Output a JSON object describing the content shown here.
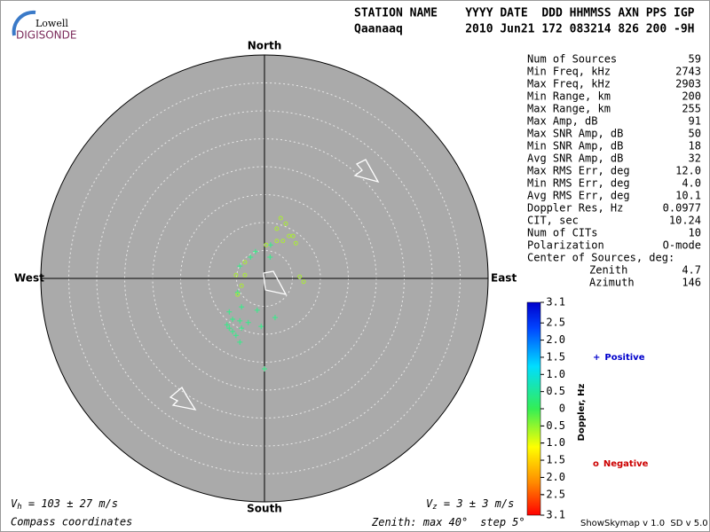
{
  "logo": {
    "top": "Lowell",
    "bottom": "DIGISONDE"
  },
  "header": {
    "line1": "STATION NAME    YYYY DATE  DDD HHMMSS AXN PPS IGP",
    "line2": "Qaanaaq         2010 Jun21 172 083214 826 200 -9H"
  },
  "compass": {
    "north": "North",
    "south": "South",
    "east": "East",
    "west": "West"
  },
  "zenith": {
    "prefix": "Zenith: max",
    "max": 40,
    "unit": "°",
    "step_prefix": "step",
    "step": 5,
    "step_unit": "°"
  },
  "velocity": {
    "vh": {
      "symbol": "V",
      "sub": "h",
      "text": " = 103 ± 27 m/s"
    },
    "vz": {
      "symbol": "V",
      "sub": "z",
      "text": " = 3 ± 3 m/s"
    }
  },
  "footer": {
    "coords": "Compass coordinates",
    "version": "ShowSkymap v 1.0  SD v 5.0"
  },
  "stats": {
    "rows": [
      [
        "Num of Sources",
        "59"
      ],
      [
        "Min Freq, kHz",
        "2743"
      ],
      [
        "Max Freq, kHz",
        "2903"
      ],
      [
        "Min Range, km",
        "200"
      ],
      [
        "Max Range, km",
        "255"
      ],
      [
        "Max Amp, dB",
        "91"
      ],
      [
        "Max SNR Amp, dB",
        "50"
      ],
      [
        "Min SNR Amp, dB",
        "18"
      ],
      [
        "Avg SNR Amp, dB",
        "32"
      ],
      [
        "Max RMS Err, deg",
        "12.0"
      ],
      [
        "Min RMS Err, deg",
        "4.0"
      ],
      [
        "Avg RMS Err, deg",
        "10.1"
      ],
      [
        "Doppler Res, Hz",
        "0.0977"
      ],
      [
        "CIT, sec",
        "10.24"
      ],
      [
        "Num of CITs",
        "10"
      ],
      [
        "Polarization",
        "O-mode"
      ],
      [
        "Center of Sources, deg:",
        ""
      ]
    ],
    "sub_rows": [
      [
        "Zenith",
        "4.7"
      ],
      [
        "Azimuth",
        "146"
      ]
    ]
  },
  "colorbar": {
    "title": "Doppler, Hz",
    "lim": [
      -3.1,
      3.1
    ],
    "ticks": [
      3.1,
      2.5,
      {
        "value": 2,
        "label": "2.0"
      },
      1.5,
      {
        "value": 1,
        "label": "1.0"
      },
      0.5,
      0,
      -0.5,
      {
        "value": -1,
        "label": "-1.0"
      },
      -1.5,
      {
        "value": -2,
        "label": "-2.0"
      },
      -2.5,
      -3.1
    ]
  },
  "sources": [
    {
      "marker": "+",
      "name": "Positive",
      "legend_color": "#0000cc",
      "color": "#33ee88",
      "east": [
        1.1,
        1.0,
        -1.6,
        -2.5,
        -4.4,
        -4.8,
        -4.1,
        -6.3,
        -5.7,
        -4.4,
        -2.9,
        -6.3,
        -5.7,
        -5.1,
        -4.1,
        -6.7,
        -4.4,
        -0.6,
        1.9,
        0,
        -1.3
      ],
      "north": [
        6.0,
        3.8,
        4.8,
        3.8,
        2.2,
        -2.5,
        -5.1,
        -6.0,
        -7.3,
        -7.6,
        -7.9,
        -8.9,
        -9.5,
        -10.2,
        -8.9,
        -8.3,
        -11.4,
        -8.6,
        -7.0,
        -16.2,
        -5.7
      ]
    },
    {
      "marker": "o",
      "name": "Negative",
      "legend_color": "#cc0000",
      "color": "#aaee33",
      "east": [
        2.9,
        3.8,
        2.2,
        4.4,
        5.1,
        5.6,
        3.3,
        2.2,
        0.3,
        6.3,
        7.0,
        -3.5,
        -5.1,
        -4.1,
        -4.8,
        -3.5
      ],
      "north": [
        10.8,
        9.8,
        8.9,
        7.6,
        7.6,
        6.3,
        6.7,
        6.7,
        6.0,
        0.3,
        -0.6,
        0.6,
        0.6,
        -1.3,
        -2.9,
        2.9
      ]
    }
  ]
}
